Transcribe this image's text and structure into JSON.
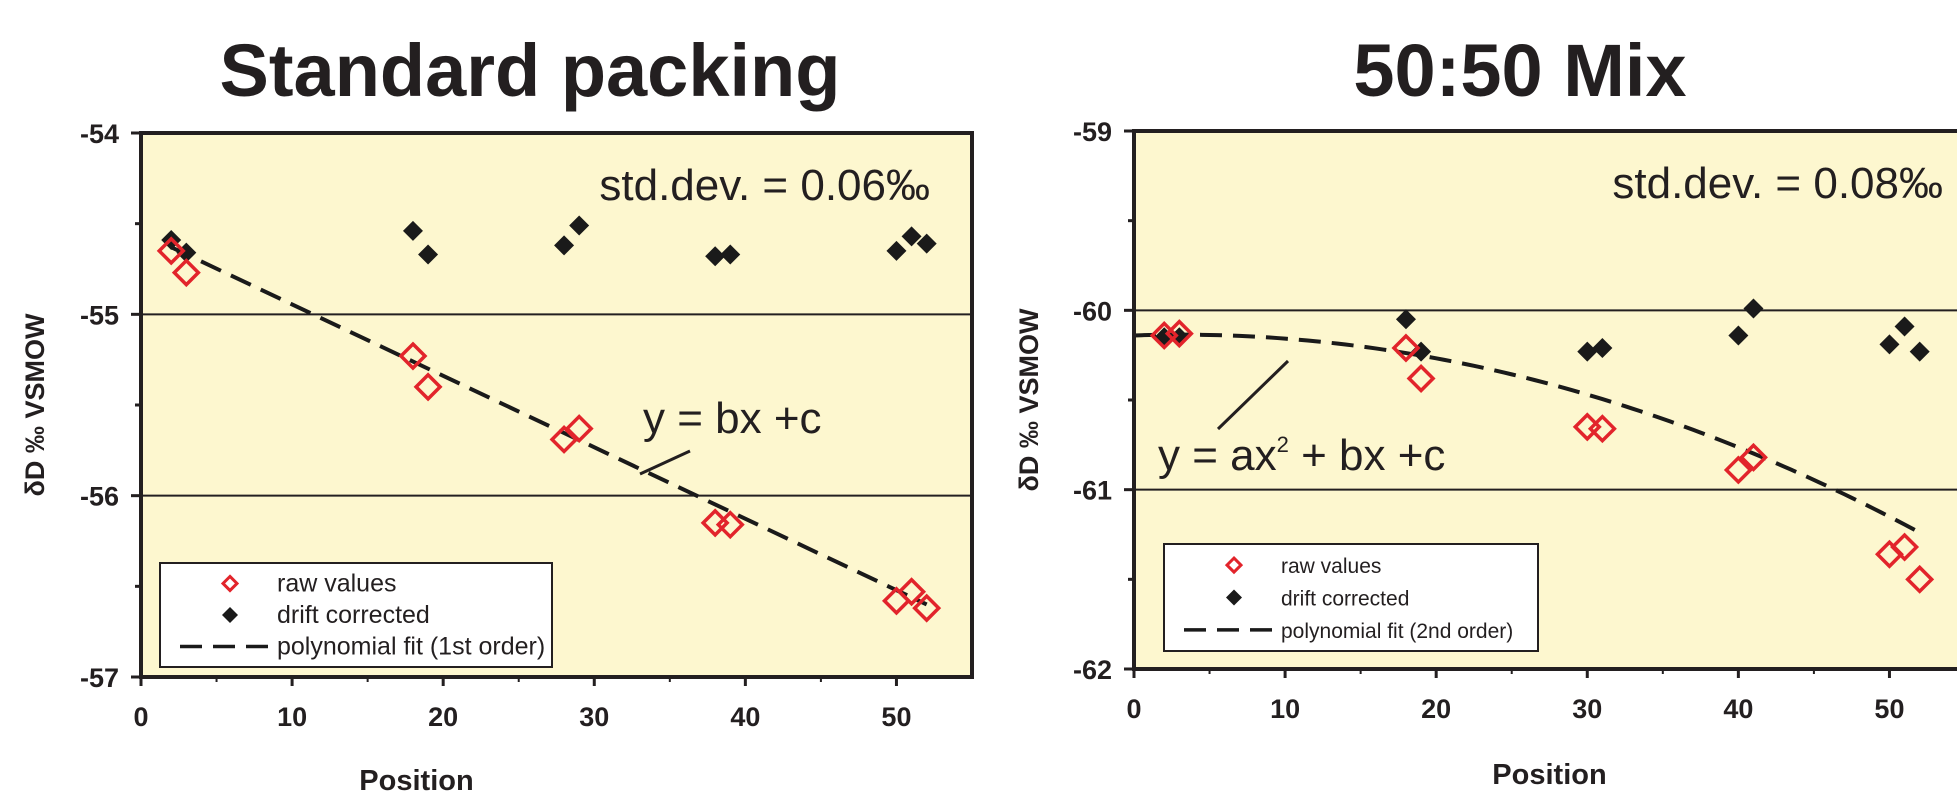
{
  "chart_data": [
    {
      "type": "scatter",
      "title": "Standard packing",
      "xlabel": "Position",
      "ylabel": "δD ‰ VSMOW",
      "xlim": [
        0,
        55
      ],
      "ylim": [
        -57,
        -54
      ],
      "xticks": [
        0,
        10,
        20,
        30,
        40,
        50
      ],
      "yticks": [
        -57,
        -56,
        -55,
        -54
      ],
      "grid": "horizontal at -55 and -56",
      "background": "#fdf7cf",
      "annotation": "std.dev. = 0.06‰",
      "fit_label": "y = bx +c",
      "legend": {
        "placement": "bottom-left",
        "entries": [
          "raw values",
          "drift corrected",
          "polynomial fit (1st order)"
        ]
      },
      "series": [
        {
          "name": "raw values",
          "marker": "open-diamond",
          "color": "#e2242b",
          "x": [
            2,
            3,
            18,
            19,
            28,
            29,
            38,
            39,
            50,
            51,
            52
          ],
          "y": [
            -54.65,
            -54.77,
            -55.23,
            -55.4,
            -55.69,
            -55.63,
            -56.15,
            -56.16,
            -56.58,
            -56.53,
            -56.62
          ]
        },
        {
          "name": "drift corrected",
          "marker": "filled-diamond",
          "color": "#1a1a1a",
          "x": [
            2,
            3,
            18,
            19,
            28,
            29,
            38,
            39,
            50,
            51,
            52
          ],
          "y": [
            -54.59,
            -54.66,
            -54.54,
            -54.67,
            -54.62,
            -54.51,
            -54.68,
            -54.67,
            -54.65,
            -54.57,
            -54.61
          ]
        },
        {
          "name": "polynomial fit (1st order)",
          "style": "dashed",
          "color": "#1a1a1a",
          "x": [
            2,
            52
          ],
          "y": [
            -54.63,
            -56.6
          ]
        }
      ]
    },
    {
      "type": "scatter",
      "title": "50:50 Mix",
      "xlabel": "Position",
      "ylabel": "δD ‰ VSMOW",
      "xlim": [
        0,
        55
      ],
      "ylim": [
        -62,
        -59
      ],
      "xticks": [
        0,
        10,
        20,
        30,
        40,
        50
      ],
      "yticks": [
        -62,
        -61,
        -60,
        -59
      ],
      "grid": "horizontal at -60 and -61",
      "background": "#fdf7cf",
      "annotation": "std.dev. = 0.08‰",
      "fit_label": "y = ax",
      "fit_label_exp": "2",
      "fit_label_rest": " + bx +c",
      "legend": {
        "placement": "bottom-left",
        "entries": [
          "raw values",
          "drift corrected",
          "polynomial fit (2nd order)"
        ]
      },
      "series": [
        {
          "name": "raw values",
          "marker": "open-diamond",
          "color": "#e2242b",
          "x": [
            2,
            3,
            18,
            19,
            30,
            31,
            40,
            41,
            50,
            51,
            52
          ],
          "y": [
            -60.14,
            -60.13,
            -60.21,
            -60.38,
            -60.65,
            -60.66,
            -60.89,
            -60.82,
            -61.36,
            -61.32,
            -61.5
          ]
        },
        {
          "name": "drift corrected",
          "marker": "filled-diamond",
          "color": "#1a1a1a",
          "x": [
            2,
            3,
            18,
            19,
            30,
            31,
            40,
            41,
            50,
            51,
            52
          ],
          "y": [
            -60.15,
            -60.15,
            -60.05,
            -60.23,
            -60.23,
            -60.21,
            -60.14,
            -59.99,
            -60.19,
            -60.09,
            -60.23
          ]
        },
        {
          "name": "polynomial fit (2nd order)",
          "style": "dashed",
          "color": "#1a1a1a",
          "fit": {
            "a": -0.000461,
            "b": 0.00284,
            "c": -60.14
          },
          "x": [
            0,
            52
          ]
        }
      ]
    }
  ]
}
